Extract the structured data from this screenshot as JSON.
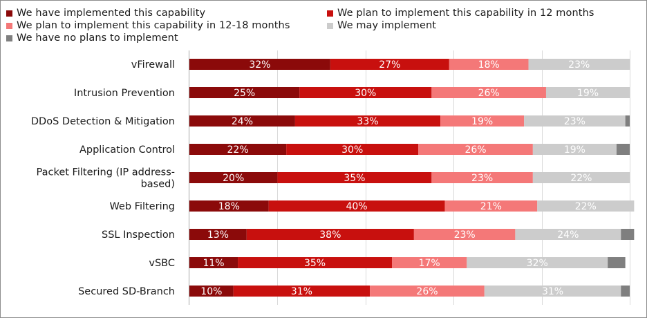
{
  "chart_data": {
    "type": "bar",
    "orientation": "horizontal",
    "stacked": true,
    "percent": true,
    "xlim": [
      0,
      100
    ],
    "grid": true,
    "legend_position": "top",
    "categories": [
      "vFirewall",
      "Intrusion Prevention",
      "DDoS Detection & Mitigation",
      "Application Control",
      "Packet Filtering (IP address-based)",
      "Web Filtering",
      "SSL Inspection",
      "vSBC",
      "Secured SD-Branch"
    ],
    "category_label_lines": [
      [
        "vFirewall"
      ],
      [
        "Intrusion Prevention"
      ],
      [
        "DDoS Detection & Mitigation"
      ],
      [
        "Application Control"
      ],
      [
        "Packet Filtering (IP address-",
        "based)"
      ],
      [
        "Web Filtering"
      ],
      [
        "SSL Inspection"
      ],
      [
        "vSBC"
      ],
      [
        "Secured SD-Branch"
      ]
    ],
    "series": [
      {
        "name": "We have implemented this capability",
        "color": "#8b0a0a",
        "label_color": "#ffffff",
        "values": [
          32,
          25,
          24,
          22,
          20,
          18,
          13,
          11,
          10
        ]
      },
      {
        "name": "We plan to implement this capability in 12 months",
        "color": "#c8100e",
        "label_color": "#ffffff",
        "values": [
          27,
          30,
          33,
          30,
          35,
          40,
          38,
          35,
          31
        ]
      },
      {
        "name": "We plan to implement this capability in 12-18 months",
        "color": "#f47878",
        "label_color": "#ffffff",
        "values": [
          18,
          26,
          19,
          26,
          23,
          21,
          23,
          17,
          26
        ]
      },
      {
        "name": "We may implement",
        "color": "#cccccc",
        "label_color": "#ffffff",
        "values": [
          23,
          19,
          23,
          19,
          22,
          22,
          24,
          32,
          31
        ]
      },
      {
        "name": "We have no plans to implement",
        "color": "#7f7f7f",
        "label_color": "#ffffff",
        "values": [
          0,
          0,
          1,
          3,
          0,
          0,
          3,
          4,
          2
        ]
      }
    ],
    "value_labels": [
      [
        "32%",
        "27%",
        "18%",
        "23%",
        ""
      ],
      [
        "25%",
        "30%",
        "26%",
        "19%",
        ""
      ],
      [
        "24%",
        "33%",
        "19%",
        "23%",
        ""
      ],
      [
        "22%",
        "30%",
        "26%",
        "19%",
        ""
      ],
      [
        "20%",
        "35%",
        "23%",
        "22%",
        ""
      ],
      [
        "18%",
        "40%",
        "21%",
        "22%",
        ""
      ],
      [
        "13%",
        "38%",
        "23%",
        "24%",
        ""
      ],
      [
        "11%",
        "35%",
        "17%",
        "32%",
        ""
      ],
      [
        "10%",
        "31%",
        "26%",
        "31%",
        ""
      ]
    ]
  }
}
